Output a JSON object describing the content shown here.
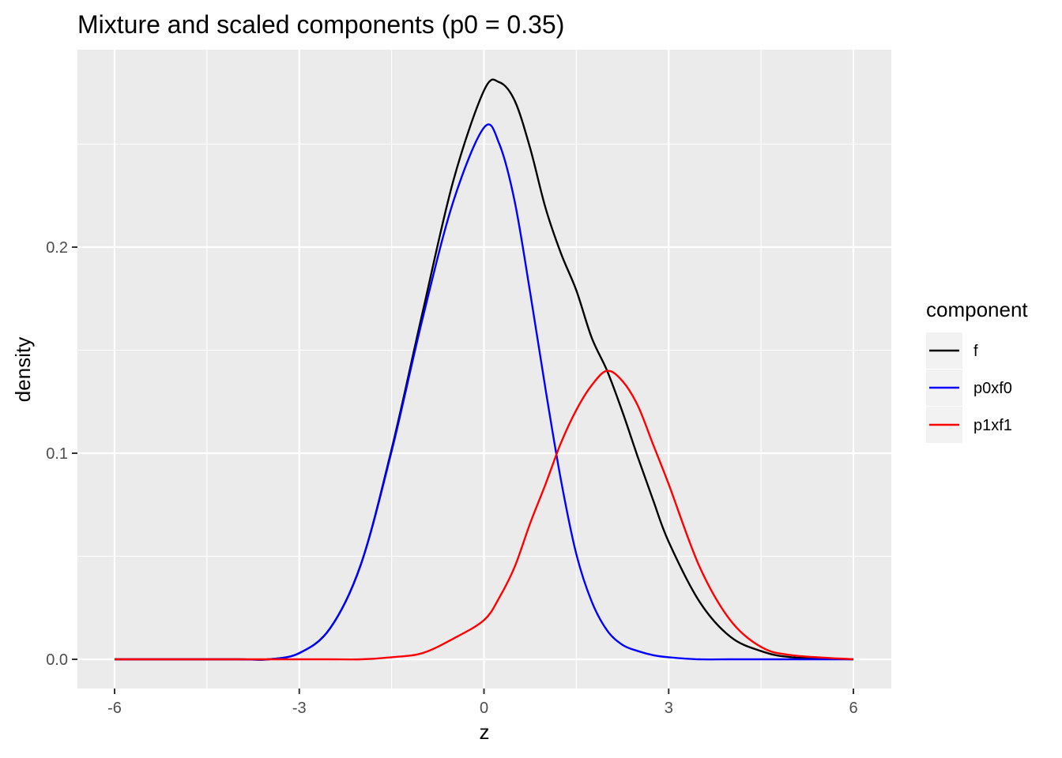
{
  "chart_data": {
    "type": "line",
    "title": "Mixture and scaled components (p0 = 0.35)",
    "xlabel": "z",
    "ylabel": "density",
    "xlim": [
      -6,
      6
    ],
    "ylim": [
      0,
      0.28
    ],
    "x_ticks": [
      -6,
      -3,
      0,
      3,
      6
    ],
    "x_tick_labels": [
      "-6",
      "-3",
      "0",
      "3",
      "6"
    ],
    "y_ticks": [
      0.0,
      0.1,
      0.2
    ],
    "y_tick_labels": [
      "0.0",
      "0.1",
      "0.2"
    ],
    "grid": true,
    "legend": {
      "title": "component",
      "position": "right"
    },
    "x": [
      -6,
      -5,
      -4,
      -3.5,
      -3,
      -2.5,
      -2,
      -1.5,
      -1,
      -0.5,
      0,
      0.25,
      0.5,
      0.75,
      1,
      1.25,
      1.5,
      1.75,
      2,
      2.25,
      2.5,
      2.75,
      3,
      3.5,
      4,
      4.5,
      5,
      6
    ],
    "series": [
      {
        "name": "f",
        "color": "#000000",
        "values": [
          0.0,
          0.0,
          0.0,
          0.0,
          0.003,
          0.015,
          0.046,
          0.102,
          0.168,
          0.232,
          0.276,
          0.28,
          0.271,
          0.248,
          0.219,
          0.197,
          0.179,
          0.156,
          0.14,
          0.12,
          0.098,
          0.077,
          0.057,
          0.028,
          0.011,
          0.004,
          0.001,
          0.0
        ]
      },
      {
        "name": "p0xf0",
        "color": "#0000ff",
        "values": [
          0.0,
          0.0,
          0.0,
          0.0,
          0.003,
          0.015,
          0.046,
          0.101,
          0.165,
          0.222,
          0.258,
          0.25,
          0.222,
          0.178,
          0.131,
          0.087,
          0.051,
          0.028,
          0.014,
          0.007,
          0.004,
          0.002,
          0.001,
          0.0,
          0.0,
          0.0,
          0.0,
          0.0
        ]
      },
      {
        "name": "p1xf1",
        "color": "#ff0000",
        "values": [
          0.0,
          0.0,
          0.0,
          0.0,
          0.0,
          0.0,
          0.0,
          0.001,
          0.003,
          0.01,
          0.019,
          0.03,
          0.045,
          0.066,
          0.085,
          0.105,
          0.121,
          0.133,
          0.14,
          0.135,
          0.123,
          0.104,
          0.085,
          0.045,
          0.019,
          0.006,
          0.002,
          0.0
        ]
      }
    ]
  }
}
